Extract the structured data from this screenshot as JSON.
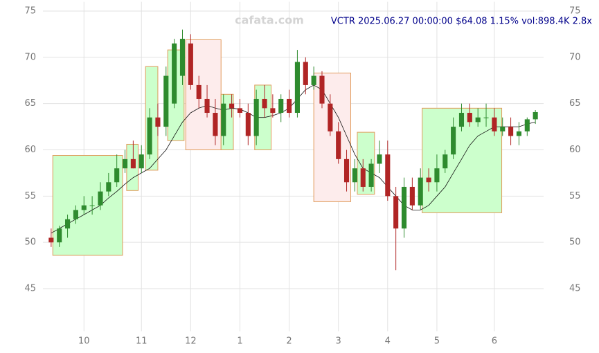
{
  "chart_data": {
    "type": "candlestick",
    "title": "VCTR 2025.06.27 00:00:00 $64.08 1.15% vol:898.4K 2.8x",
    "watermark": "cafata.com",
    "categories": [
      null,
      null,
      null,
      null,
      "10",
      null,
      null,
      null,
      null,
      null,
      null,
      "11",
      null,
      null,
      null,
      null,
      null,
      "12",
      null,
      null,
      null,
      null,
      null,
      "1",
      null,
      null,
      null,
      null,
      null,
      "2",
      null,
      null,
      null,
      null,
      null,
      "3",
      null,
      null,
      null,
      null,
      null,
      "4",
      null,
      null,
      null,
      null,
      null,
      "5",
      null,
      null,
      null,
      null,
      null,
      null,
      "6",
      null,
      null,
      null,
      null,
      null
    ],
    "open": [
      50.5,
      50,
      51.5,
      52.5,
      53.5,
      54,
      54,
      55.5,
      56.5,
      58,
      59,
      58,
      59.5,
      63.5,
      62.5,
      65,
      68,
      71.5,
      67,
      65.5,
      64,
      61.5,
      65,
      64.5,
      64,
      61.5,
      65.5,
      64.5,
      64,
      65.5,
      64,
      69.5,
      67,
      68,
      65,
      62,
      59,
      56.5,
      58,
      56,
      58.5,
      59.5,
      55,
      51.5,
      56,
      54,
      57,
      56.5,
      58,
      59.5,
      62.5,
      64,
      63,
      63.5,
      63.5,
      62,
      62.5,
      61.5,
      62,
      63.3
    ],
    "high": [
      51.5,
      51.8,
      53,
      54,
      55,
      55,
      56.5,
      57.5,
      59.5,
      60,
      61,
      60.5,
      64.5,
      65,
      69,
      72,
      73,
      72.5,
      68,
      67,
      65.5,
      66,
      66,
      65.5,
      65,
      66.5,
      67,
      66,
      66,
      66.5,
      70.8,
      70,
      69,
      68.5,
      66,
      63,
      60,
      59,
      59,
      59,
      61,
      61,
      56,
      57,
      57,
      58,
      58,
      59.5,
      60,
      63.5,
      65,
      65,
      64.5,
      65,
      64.5,
      63.5,
      63.5,
      63,
      63.5,
      64.3
    ],
    "low": [
      49.5,
      49.5,
      50.5,
      52,
      53,
      53,
      53.5,
      55,
      56,
      57.5,
      58,
      57.5,
      59,
      61.5,
      61.5,
      64.5,
      67,
      66.5,
      64.5,
      63.5,
      60.5,
      60.5,
      63.5,
      63.5,
      60.5,
      60.5,
      63.5,
      63.5,
      63,
      63.5,
      63.5,
      66,
      66.5,
      64.5,
      61.5,
      58.5,
      55.5,
      55.5,
      55.5,
      55.5,
      57.5,
      54.5,
      47,
      50.5,
      53.5,
      53.5,
      55.5,
      55.5,
      57.5,
      59,
      62,
      62.5,
      62.5,
      62.5,
      61.5,
      61.5,
      60.5,
      60.5,
      61.5,
      62.8
    ],
    "close": [
      50,
      51.5,
      52.5,
      53.5,
      54,
      54,
      55.5,
      56.5,
      58,
      59,
      58,
      59.5,
      63.5,
      62.5,
      68,
      71.5,
      72,
      67,
      65.5,
      64,
      61.5,
      65,
      64.5,
      64,
      61.5,
      65.5,
      64.5,
      64,
      65.5,
      64,
      69.5,
      67,
      68,
      65,
      62,
      59,
      56.5,
      58,
      56,
      58.5,
      59.5,
      55,
      51.5,
      56,
      54,
      57,
      56.5,
      58,
      59.5,
      62.5,
      64,
      63,
      63.5,
      63.5,
      62,
      62.5,
      61.5,
      62,
      63.3,
      64.08
    ],
    "up_color": "#2e8b2e",
    "down_color": "#b02525",
    "ma": {
      "color": "#111111",
      "values": [
        51,
        51.5,
        52,
        52.5,
        53,
        53.5,
        54,
        54.8,
        55.5,
        56.3,
        57,
        57.5,
        58,
        59,
        60,
        61.5,
        63,
        64,
        64.5,
        64.8,
        64.5,
        64.3,
        64.5,
        64.4,
        64,
        63.5,
        63.5,
        63.7,
        64,
        64.5,
        65.5,
        66.5,
        67,
        66.5,
        65,
        63.5,
        61.5,
        59.5,
        58,
        57.5,
        57,
        56,
        55,
        54,
        53.5,
        53.5,
        54,
        55,
        56,
        57.5,
        59,
        60.5,
        61.5,
        62,
        62.5,
        62.5,
        62.5,
        62.5,
        62.8,
        63
      ]
    },
    "zones": [
      {
        "color": "#ccffcc",
        "from": 0.2,
        "to": 8.7,
        "low": 48.6,
        "high": 59.4
      },
      {
        "color": "#ccffcc",
        "from": 9.2,
        "to": 10.6,
        "low": 55.6,
        "high": 60.6
      },
      {
        "color": "#ccffcc",
        "from": 11.5,
        "to": 13,
        "low": 57.8,
        "high": 69
      },
      {
        "color": "#ccffcc",
        "from": 14.2,
        "to": 16.2,
        "low": 61,
        "high": 70.8
      },
      {
        "color": "#fdecec",
        "from": 16.4,
        "to": 20.7,
        "low": 60,
        "high": 71.9
      },
      {
        "color": "#ccffcc",
        "from": 20.7,
        "to": 22.2,
        "low": 60,
        "high": 66
      },
      {
        "color": "#ccffcc",
        "from": 24.8,
        "to": 26.8,
        "low": 60,
        "high": 67
      },
      {
        "color": "#fdecec",
        "from": 32,
        "to": 36.5,
        "low": 54.4,
        "high": 68.3
      },
      {
        "color": "#ccffcc",
        "from": 37.3,
        "to": 39.4,
        "low": 55.2,
        "high": 61.9
      },
      {
        "color": "#ccffcc",
        "from": 45.2,
        "to": 54.9,
        "low": 53.2,
        "high": 64.5
      }
    ],
    "ylim": [
      40.4,
      76
    ],
    "yticks": [
      45,
      50,
      55,
      60,
      65,
      70,
      75
    ],
    "grid": true
  }
}
